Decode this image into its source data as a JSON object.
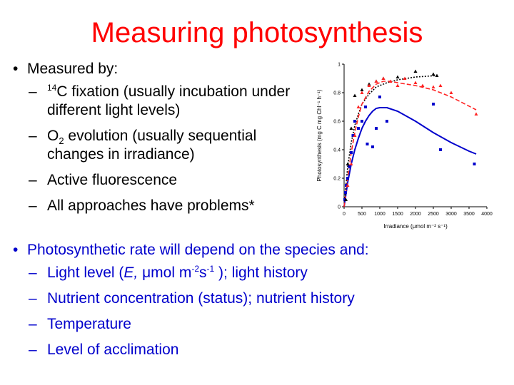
{
  "slide": {
    "title": "Measuring photosynthesis",
    "bullet_char": "•",
    "dash_char": "–",
    "measured_by": {
      "heading": "Measured by:",
      "item1": {
        "sup": "14",
        "text": "C fixation (usually incubation under different light levels)"
      },
      "item2": {
        "pre": "O",
        "sub": "2",
        "text": " evolution (usually sequential changes in irradiance)"
      },
      "item3": "Active fluorescence",
      "item4": "All approaches have problems*"
    },
    "photo_rate": {
      "heading": "Photosynthetic rate  will depend on the species and:",
      "light": {
        "pre": "Light level (",
        "italic": "E,",
        "mu": " μ",
        "unit": "mol m",
        "exp1": "-2",
        "s": "s",
        "exp2": "-1",
        "post": " ); light history"
      },
      "nutrient": "Nutrient concentration (status); nutrient history",
      "temperature": "Temperature",
      "acclimation": "Level of acclimation"
    },
    "colors": {
      "title": "#ff0000",
      "blue_text": "#0000cc",
      "black_text": "#000000"
    }
  },
  "chart_data": {
    "type": "scatter",
    "xlabel": "Irradiance (μmol m⁻² s⁻¹)",
    "ylabel": "Photosynthesis (mg C mg Chl⁻¹ h⁻¹)",
    "xlim": [
      0,
      4000
    ],
    "ylim": [
      0,
      1
    ],
    "xticks": [
      0,
      500,
      1000,
      1500,
      2000,
      2500,
      3000,
      3500,
      4000
    ],
    "yticks": [
      0,
      0.2,
      0.4,
      0.6,
      0.8,
      1
    ],
    "series": [
      {
        "marker": "square",
        "color": "#0000cc",
        "line_style": "solid",
        "points": [
          [
            20,
            0.05
          ],
          [
            40,
            0.1
          ],
          [
            60,
            0.15
          ],
          [
            100,
            0.2
          ],
          [
            150,
            0.28
          ],
          [
            200,
            0.38
          ],
          [
            250,
            0.5
          ],
          [
            300,
            0.6
          ],
          [
            400,
            0.55
          ],
          [
            500,
            0.6
          ],
          [
            600,
            0.7
          ],
          [
            650,
            0.44
          ],
          [
            800,
            0.42
          ],
          [
            900,
            0.55
          ],
          [
            1000,
            0.77
          ],
          [
            1200,
            0.6
          ],
          [
            2500,
            0.72
          ],
          [
            2700,
            0.4
          ],
          [
            3650,
            0.3
          ]
        ],
        "fit": [
          [
            0,
            0
          ],
          [
            100,
            0.17
          ],
          [
            200,
            0.3
          ],
          [
            300,
            0.4
          ],
          [
            400,
            0.48
          ],
          [
            500,
            0.55
          ],
          [
            600,
            0.6
          ],
          [
            700,
            0.64
          ],
          [
            800,
            0.67
          ],
          [
            900,
            0.69
          ],
          [
            1000,
            0.695
          ],
          [
            1200,
            0.695
          ],
          [
            1500,
            0.67
          ],
          [
            2000,
            0.6
          ],
          [
            2500,
            0.52
          ],
          [
            3000,
            0.45
          ],
          [
            3500,
            0.39
          ],
          [
            3700,
            0.37
          ]
        ]
      },
      {
        "marker": "triangle",
        "color": "#000000",
        "line_style": "dotted",
        "points": [
          [
            50,
            0.05
          ],
          [
            100,
            0.3
          ],
          [
            200,
            0.55
          ],
          [
            300,
            0.78
          ],
          [
            500,
            0.82
          ],
          [
            700,
            0.86
          ],
          [
            900,
            0.88
          ],
          [
            1100,
            0.9
          ],
          [
            1500,
            0.91
          ],
          [
            2000,
            0.95
          ],
          [
            2500,
            0.93
          ],
          [
            2600,
            0.92
          ]
        ],
        "fit": [
          [
            0,
            0
          ],
          [
            100,
            0.28
          ],
          [
            200,
            0.45
          ],
          [
            300,
            0.57
          ],
          [
            400,
            0.65
          ],
          [
            500,
            0.72
          ],
          [
            700,
            0.79
          ],
          [
            900,
            0.84
          ],
          [
            1200,
            0.87
          ],
          [
            1500,
            0.89
          ],
          [
            2000,
            0.91
          ],
          [
            2600,
            0.92
          ]
        ]
      },
      {
        "marker": "triangle",
        "color": "#ff2222",
        "line_style": "dashed",
        "points": [
          [
            100,
            0.15
          ],
          [
            200,
            0.3
          ],
          [
            300,
            0.5
          ],
          [
            400,
            0.7
          ],
          [
            500,
            0.8
          ],
          [
            700,
            0.85
          ],
          [
            900,
            0.88
          ],
          [
            1100,
            0.9
          ],
          [
            1300,
            0.88
          ],
          [
            1500,
            0.85
          ],
          [
            1700,
            0.9
          ],
          [
            2000,
            0.87
          ],
          [
            2200,
            0.85
          ],
          [
            2500,
            0.84
          ],
          [
            2700,
            0.85
          ],
          [
            3000,
            0.8
          ],
          [
            3700,
            0.65
          ]
        ],
        "fit": [
          [
            0,
            0
          ],
          [
            100,
            0.2
          ],
          [
            200,
            0.38
          ],
          [
            300,
            0.52
          ],
          [
            400,
            0.63
          ],
          [
            500,
            0.72
          ],
          [
            700,
            0.81
          ],
          [
            900,
            0.86
          ],
          [
            1100,
            0.88
          ],
          [
            1300,
            0.88
          ],
          [
            1500,
            0.87
          ],
          [
            2000,
            0.85
          ],
          [
            2500,
            0.82
          ],
          [
            3000,
            0.77
          ],
          [
            3700,
            0.68
          ]
        ]
      }
    ]
  }
}
